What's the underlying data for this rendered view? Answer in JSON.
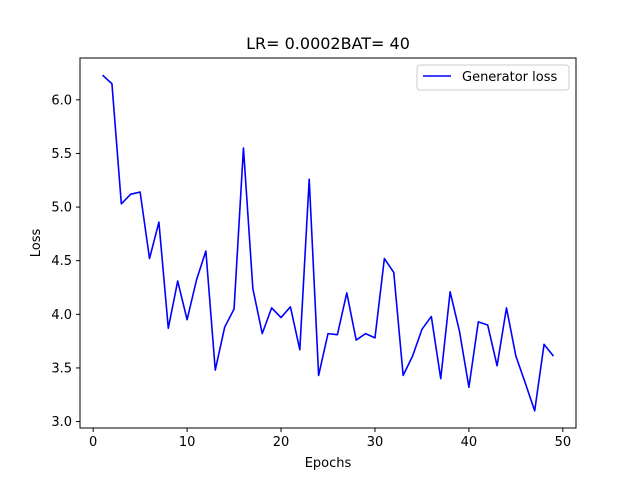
{
  "chart_data": {
    "type": "line",
    "title": "LR= 0.0002BAT= 40",
    "xlabel": "Epochs",
    "ylabel": "Loss",
    "xlim": [
      -1.4,
      51.4
    ],
    "ylim": [
      2.94,
      6.39
    ],
    "xticks": [
      0,
      10,
      20,
      30,
      40,
      50
    ],
    "yticks": [
      3.0,
      3.5,
      4.0,
      4.5,
      5.0,
      5.5,
      6.0
    ],
    "xtick_labels": [
      "0",
      "10",
      "20",
      "30",
      "40",
      "50"
    ],
    "ytick_labels": [
      "3.0",
      "3.5",
      "4.0",
      "4.5",
      "5.0",
      "5.5",
      "6.0"
    ],
    "grid": false,
    "legend": {
      "position": "upper right",
      "entries": [
        "Generator loss"
      ]
    },
    "series": [
      {
        "name": "Generator loss",
        "color": "#0000ff",
        "x": [
          1,
          2,
          3,
          4,
          5,
          6,
          7,
          8,
          9,
          10,
          11,
          12,
          13,
          14,
          15,
          16,
          17,
          18,
          19,
          20,
          21,
          22,
          23,
          24,
          25,
          26,
          27,
          28,
          29,
          30,
          31,
          32,
          33,
          34,
          35,
          36,
          37,
          38,
          39,
          40,
          41,
          42,
          43,
          44,
          45,
          46,
          47,
          48,
          49
        ],
        "y": [
          6.23,
          6.15,
          5.03,
          5.12,
          5.14,
          4.52,
          4.86,
          3.87,
          4.31,
          3.95,
          4.32,
          4.59,
          3.48,
          3.88,
          4.05,
          5.55,
          4.24,
          3.82,
          4.06,
          3.97,
          4.07,
          3.67,
          5.26,
          3.43,
          3.82,
          3.81,
          4.2,
          3.76,
          3.82,
          3.78,
          4.52,
          4.39,
          3.43,
          3.61,
          3.86,
          3.98,
          3.4,
          4.21,
          3.84,
          3.32,
          3.93,
          3.9,
          3.52,
          4.06,
          3.61,
          3.36,
          3.1,
          3.72,
          3.61
        ]
      }
    ]
  }
}
